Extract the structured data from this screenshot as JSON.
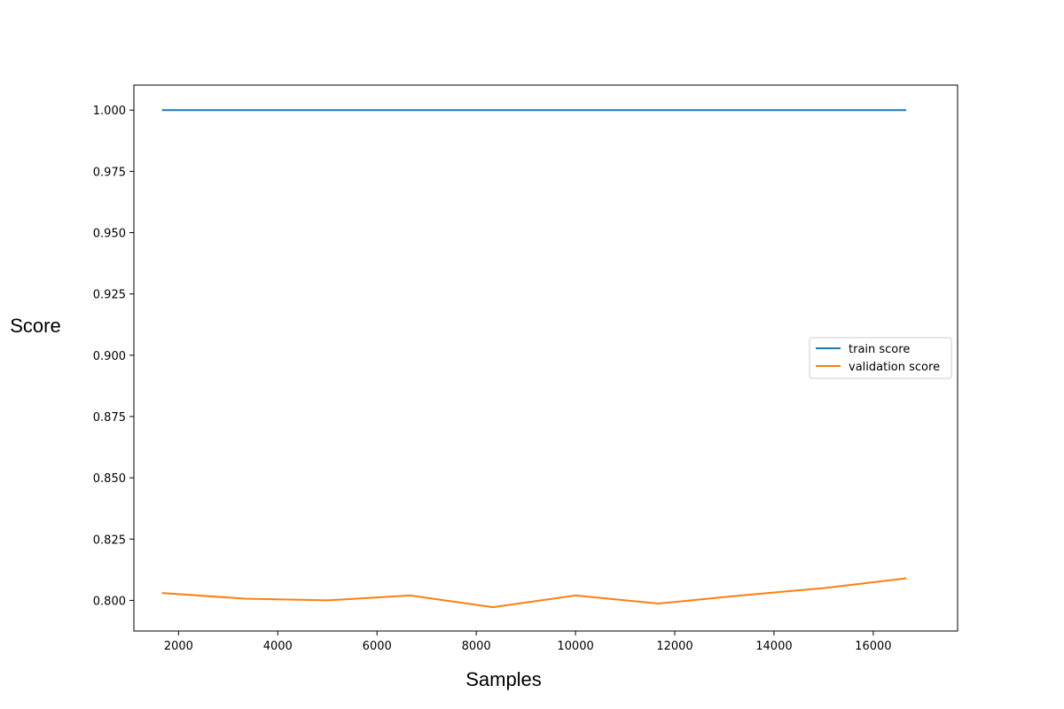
{
  "chart_data": {
    "type": "line",
    "title": "",
    "xlabel": "Samples",
    "ylabel": "Score",
    "xlim": [
      1100,
      17700
    ],
    "ylim": [
      0.7875,
      1.0102
    ],
    "xticks": [
      2000,
      4000,
      6000,
      8000,
      10000,
      12000,
      14000,
      16000
    ],
    "yticks": [
      1.0,
      0.975,
      0.95,
      0.925,
      0.9,
      0.875,
      0.85,
      0.825,
      0.8
    ],
    "xtick_labels": [
      "2000",
      "4000",
      "6000",
      "8000",
      "10000",
      "12000",
      "14000",
      "16000"
    ],
    "ytick_labels": [
      "1.000",
      "0.975",
      "0.950",
      "0.925",
      "0.900",
      "0.875",
      "0.850",
      "0.825",
      "0.800"
    ],
    "grid": false,
    "legend_position": "center-right",
    "x": [
      1666,
      3333,
      5000,
      6666,
      8333,
      10000,
      11666,
      13333,
      15000,
      16666
    ],
    "series": [
      {
        "name": "train score",
        "color": "#1f77b4",
        "values": [
          1.0,
          1.0,
          1.0,
          1.0,
          1.0,
          1.0,
          1.0,
          1.0,
          1.0,
          1.0
        ]
      },
      {
        "name": "validation score",
        "color": "#ff7f0e",
        "values": [
          0.803,
          0.8007,
          0.8,
          0.802,
          0.7972,
          0.802,
          0.7987,
          0.802,
          0.805,
          0.809
        ]
      }
    ]
  }
}
